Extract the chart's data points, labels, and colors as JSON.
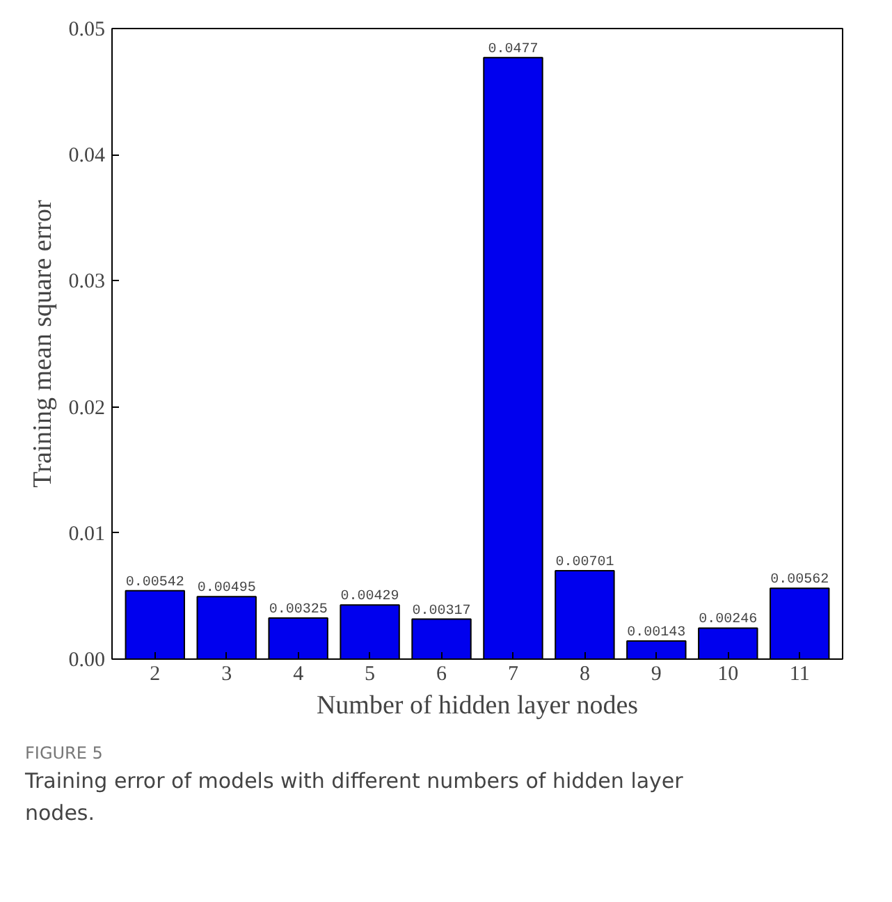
{
  "chart_data": {
    "type": "bar",
    "xlabel": "Number of hidden layer nodes",
    "ylabel": "Training mean square error",
    "categories": [
      "2",
      "3",
      "4",
      "5",
      "6",
      "7",
      "8",
      "9",
      "10",
      "11"
    ],
    "values": [
      0.00542,
      0.00495,
      0.00325,
      0.00429,
      0.00317,
      0.0477,
      0.00701,
      0.00143,
      0.00246,
      0.00562
    ],
    "color": "#0000ee",
    "data_labels": true,
    "ylim": [
      0,
      0.05
    ],
    "yticks": [
      {
        "value": 0,
        "label": "0.00"
      },
      {
        "value": 0.01,
        "label": "0.01"
      },
      {
        "value": 0.02,
        "label": "0.02"
      },
      {
        "value": 0.03,
        "label": "0.03"
      },
      {
        "value": 0.04,
        "label": "0.04"
      },
      {
        "value": 0.05,
        "label": "0.05"
      }
    ],
    "grid": false,
    "annotations": [
      "FIGURE 5",
      "Training error of models with different numbers of hidden layer nodes."
    ]
  }
}
